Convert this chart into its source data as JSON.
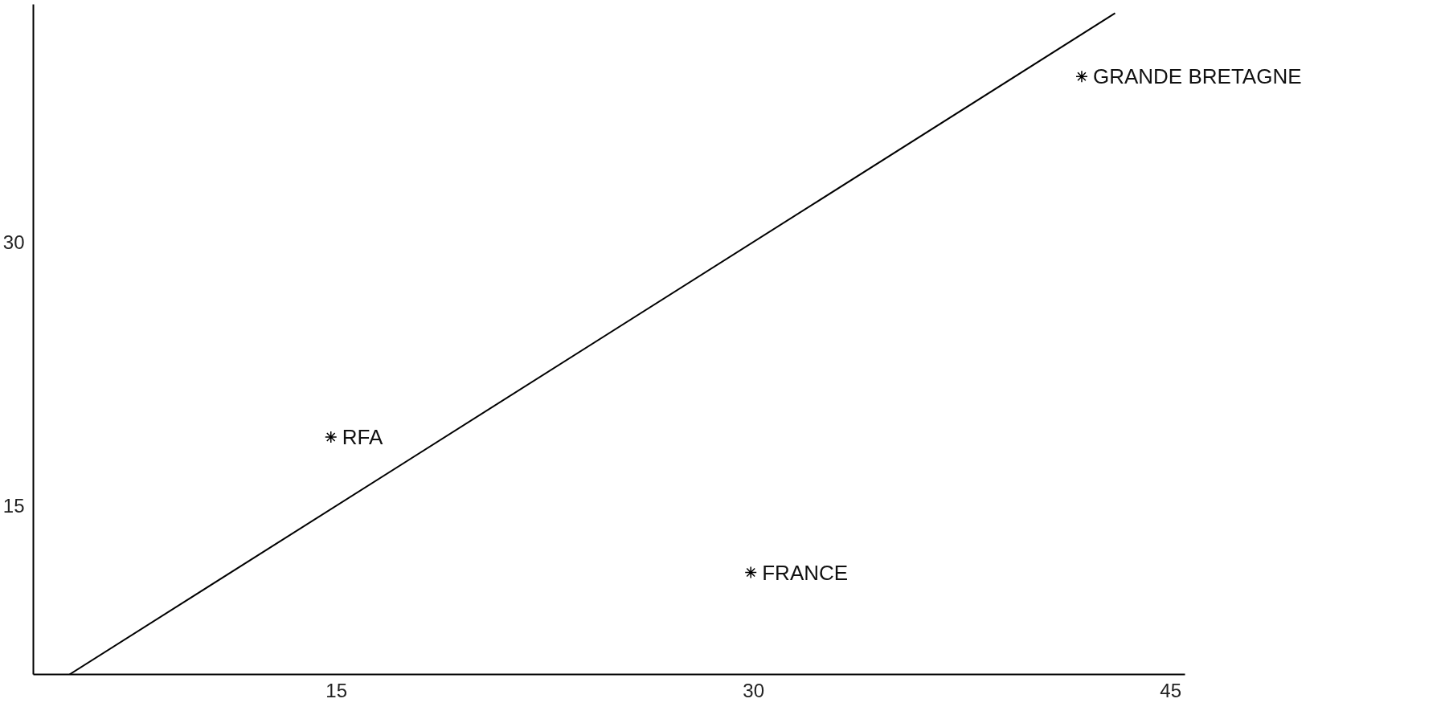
{
  "chart_data": {
    "type": "scatter",
    "x": [
      14.8,
      29.9,
      41.8
    ],
    "values": [
      18.9,
      11.2,
      39.4
    ],
    "marker": "cross",
    "color": "#000000",
    "xlim": [
      4.1,
      45.5
    ],
    "ylim": [
      5.4,
      43.5
    ],
    "xticks": [
      15,
      30,
      45
    ],
    "yticks": [
      15,
      30
    ],
    "grid": false,
    "series": [
      {
        "type": "line",
        "x": [
          5.4,
          43
        ],
        "values": [
          5.4,
          43
        ],
        "color": "#000000",
        "line_style": "solid",
        "marker": "none"
      }
    ],
    "annotations": [
      {
        "text": "RFA",
        "x": 14.8,
        "y": 18.9
      },
      {
        "text": "FRANCE",
        "x": 29.9,
        "y": 11.2
      },
      {
        "text": "GRANDE BRETAGNE",
        "x": 41.8,
        "y": 39.4
      }
    ]
  }
}
